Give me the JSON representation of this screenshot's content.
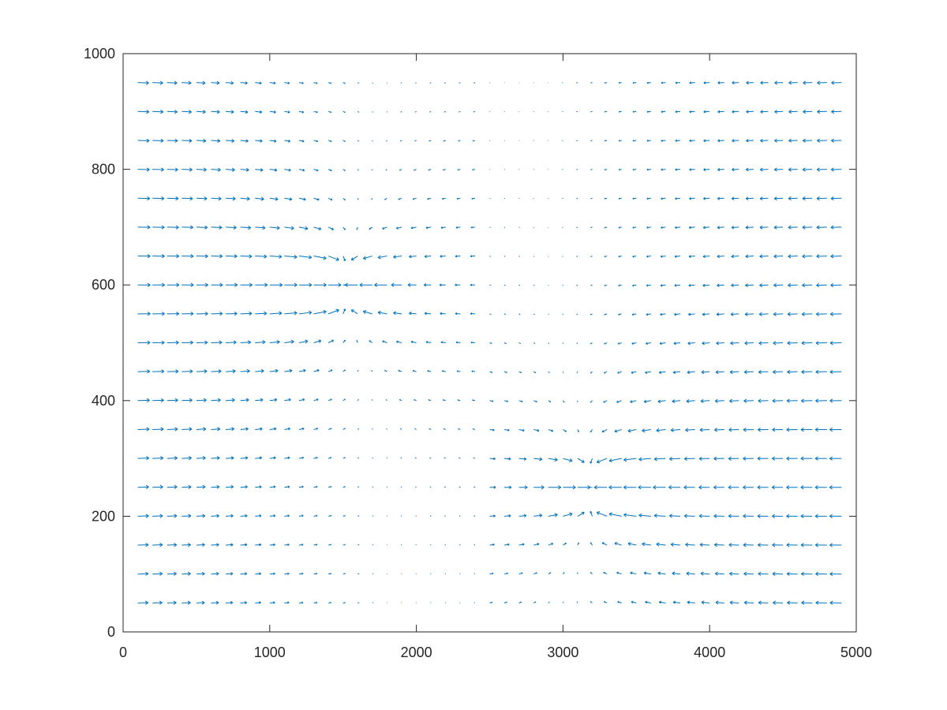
{
  "chart_data": {
    "type": "quiver",
    "title": "",
    "xlabel": "",
    "ylabel": "",
    "xlim": [
      0,
      5000
    ],
    "ylim": [
      0,
      1000
    ],
    "xticks": [
      0,
      1000,
      2000,
      3000,
      4000,
      5000
    ],
    "yticks": [
      0,
      200,
      400,
      600,
      800,
      1000
    ],
    "xtick_labels": [
      "0",
      "1000",
      "2000",
      "3000",
      "4000",
      "5000"
    ],
    "ytick_labels": [
      "0",
      "200",
      "400",
      "600",
      "800",
      "1000"
    ],
    "grid": false,
    "box": true,
    "colors": {
      "arrows": "#0072BD",
      "axes": "#262626",
      "background": "#ffffff"
    },
    "series": [
      {
        "grid_x": {
          "start": 100,
          "step": 100,
          "count": 49
        },
        "grid_y": {
          "start": 50,
          "step": 50,
          "count": 19
        },
        "field_description": "Two point vortex/sink features",
        "sink_1": {
          "x": 1500,
          "y": 600
        },
        "sink_2": {
          "x": 3200,
          "y": 250
        },
        "left_flow": "+x",
        "right_flow": "-x"
      }
    ]
  }
}
